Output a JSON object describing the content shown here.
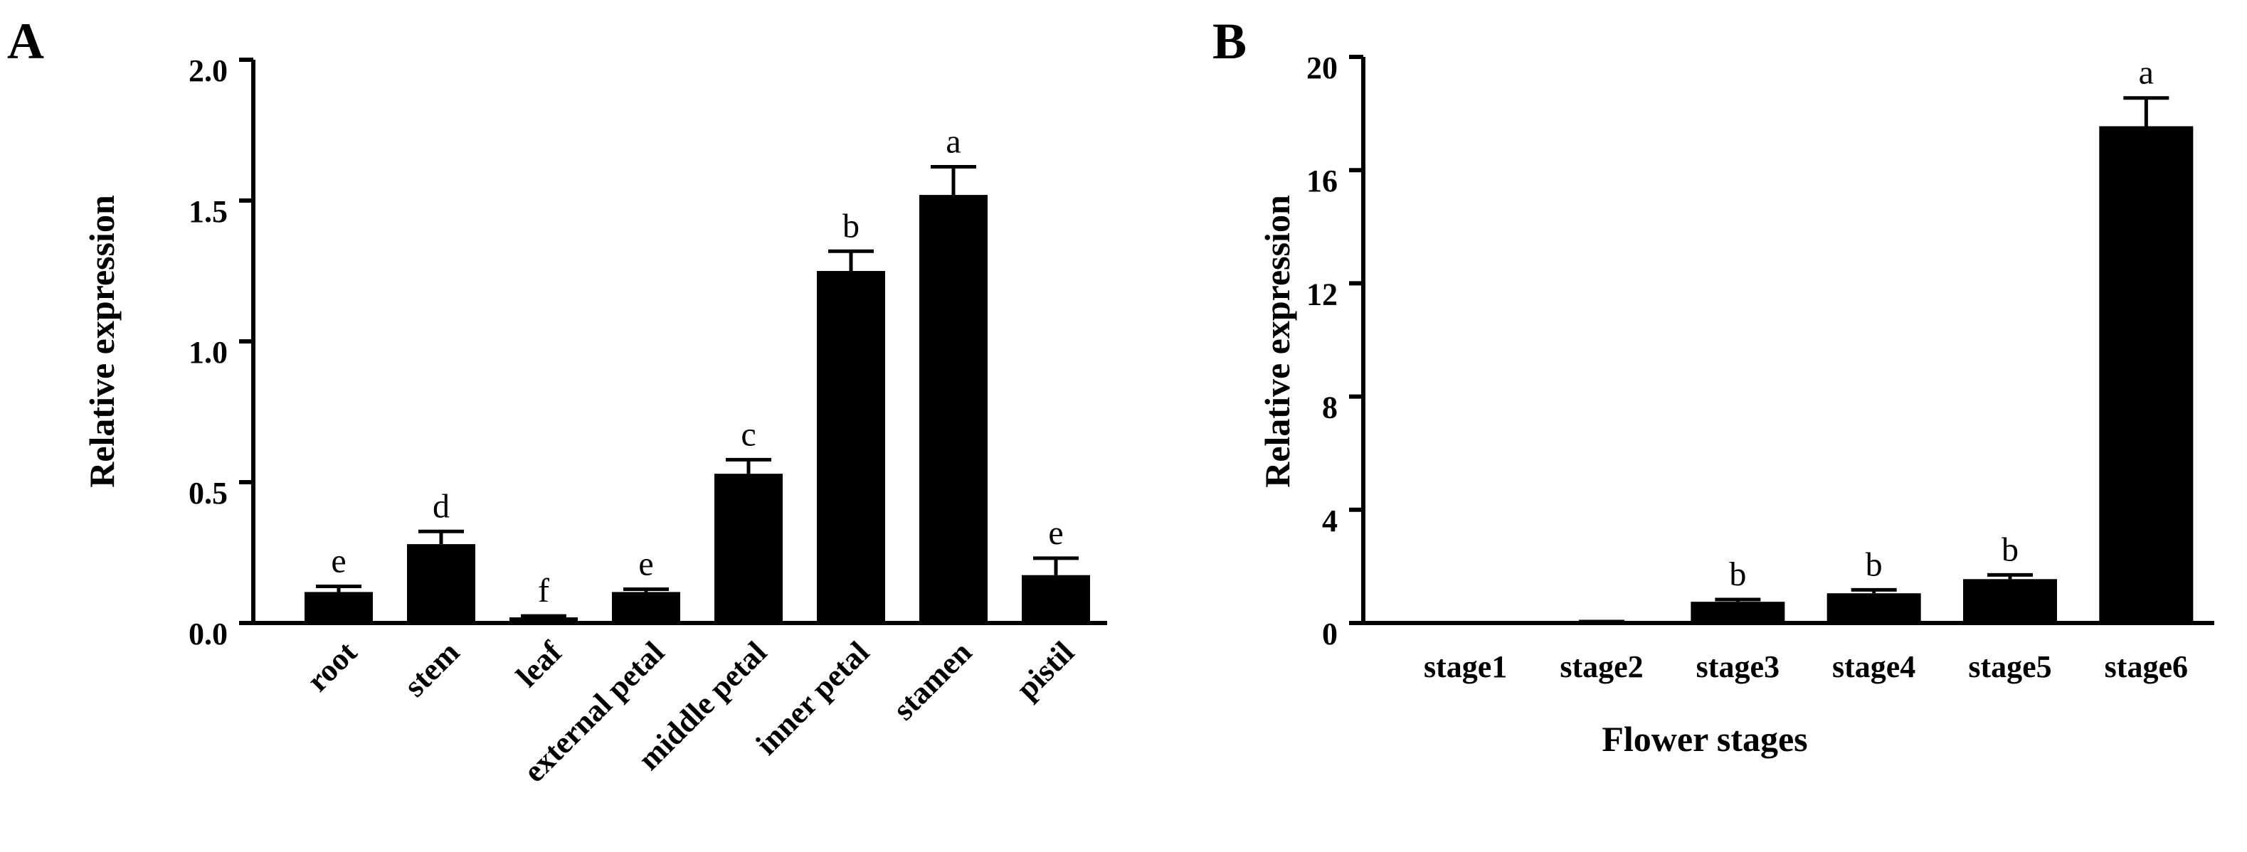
{
  "panels": [
    {
      "letter": "A"
    },
    {
      "letter": "B"
    }
  ],
  "chart_data": [
    {
      "type": "bar",
      "panel": "A",
      "title": "",
      "xlabel": "",
      "ylabel": "Relative expression",
      "ylim": [
        0,
        2.0
      ],
      "yticks": [
        0,
        0.5,
        1.0,
        1.5,
        2.0
      ],
      "ytick_labels": [
        "0.0",
        "0.5",
        "1.0",
        "1.5",
        "2.0"
      ],
      "categories": [
        "root",
        "stem",
        "leaf",
        "external petal",
        "middle petal",
        "inner petal",
        "stamen",
        "pistil"
      ],
      "values": [
        0.11,
        0.28,
        0.02,
        0.11,
        0.53,
        1.25,
        1.52,
        0.17
      ],
      "errors": [
        0.02,
        0.045,
        0.005,
        0.01,
        0.05,
        0.07,
        0.1,
        0.06
      ],
      "significance": [
        "e",
        "d",
        "f",
        "e",
        "c",
        "b",
        "a",
        "e"
      ],
      "bar_color": "#000000",
      "grid": false,
      "legend": "none"
    },
    {
      "type": "bar",
      "panel": "B",
      "title": "",
      "xlabel": "Flower stages",
      "ylabel": "Relative expression",
      "ylim": [
        0,
        20
      ],
      "yticks": [
        0,
        4,
        8,
        12,
        16,
        20
      ],
      "ytick_labels": [
        "0",
        "4",
        "8",
        "12",
        "16",
        "20"
      ],
      "categories": [
        "stage1",
        "stage2",
        "stage3",
        "stage4",
        "stage5",
        "stage6"
      ],
      "values": [
        0.01,
        0.04,
        0.75,
        1.05,
        1.55,
        17.55
      ],
      "errors": [
        0.0,
        0.01,
        0.08,
        0.12,
        0.15,
        1.0
      ],
      "significance": [
        "",
        "",
        "b",
        "b",
        "b",
        "a"
      ],
      "bar_color": "#000000",
      "grid": false,
      "legend": "none"
    }
  ]
}
